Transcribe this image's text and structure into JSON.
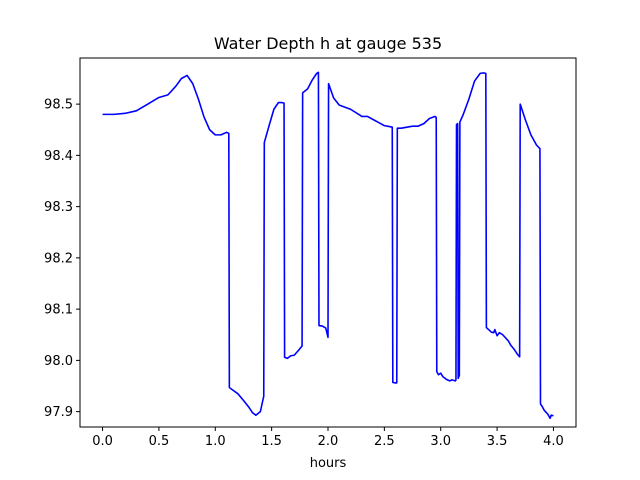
{
  "chart_data": {
    "type": "line",
    "title": "Water Depth h at gauge 535",
    "xlabel": "hours",
    "ylabel": "",
    "xlim": [
      -0.2,
      4.2
    ],
    "ylim": [
      97.87,
      98.59
    ],
    "xticks": [
      0.0,
      0.5,
      1.0,
      1.5,
      2.0,
      2.5,
      3.0,
      3.5,
      4.0
    ],
    "xtick_labels": [
      "0.0",
      "0.5",
      "1.0",
      "1.5",
      "2.0",
      "2.5",
      "3.0",
      "3.5",
      "4.0"
    ],
    "yticks": [
      97.9,
      98.0,
      98.1,
      98.2,
      98.3,
      98.4,
      98.5
    ],
    "ytick_labels": [
      "97.9",
      "98.0",
      "98.1",
      "98.2",
      "98.3",
      "98.4",
      "98.5"
    ],
    "grid": false,
    "series": [
      {
        "name": "h",
        "color": "#0000ff",
        "x": [
          0.0,
          0.1,
          0.2,
          0.3,
          0.4,
          0.5,
          0.58,
          0.65,
          0.7,
          0.75,
          0.8,
          0.85,
          0.9,
          0.95,
          1.0,
          1.05,
          1.1,
          1.12,
          1.125,
          1.15,
          1.2,
          1.25,
          1.3,
          1.33,
          1.36,
          1.4,
          1.43,
          1.435,
          1.48,
          1.52,
          1.56,
          1.59,
          1.61,
          1.615,
          1.64,
          1.67,
          1.7,
          1.74,
          1.77,
          1.775,
          1.82,
          1.86,
          1.9,
          1.915,
          1.92,
          1.95,
          1.98,
          2.0,
          2.005,
          2.05,
          2.1,
          2.2,
          2.28,
          2.3,
          2.35,
          2.4,
          2.45,
          2.5,
          2.55,
          2.57,
          2.575,
          2.6,
          2.61,
          2.615,
          2.65,
          2.7,
          2.75,
          2.8,
          2.85,
          2.9,
          2.95,
          2.96,
          2.965,
          2.98,
          3.0,
          3.02,
          3.05,
          3.08,
          3.1,
          3.13,
          3.135,
          3.14,
          3.15,
          3.155,
          3.16,
          3.165,
          3.17,
          3.2,
          3.25,
          3.3,
          3.35,
          3.38,
          3.4,
          3.405,
          3.45,
          3.47,
          3.48,
          3.5,
          3.52,
          3.55,
          3.6,
          3.62,
          3.65,
          3.68,
          3.7,
          3.705,
          3.75,
          3.8,
          3.85,
          3.88,
          3.885,
          3.9,
          3.92,
          3.95,
          3.97,
          3.98,
          4.0
        ],
        "y": [
          98.48,
          98.48,
          98.482,
          98.487,
          98.5,
          98.513,
          98.518,
          98.535,
          98.55,
          98.556,
          98.54,
          98.51,
          98.475,
          98.45,
          98.44,
          98.44,
          98.445,
          98.443,
          97.947,
          97.943,
          97.935,
          97.922,
          97.908,
          97.898,
          97.893,
          97.9,
          97.93,
          98.425,
          98.46,
          98.49,
          98.503,
          98.503,
          98.502,
          98.006,
          98.004,
          98.009,
          98.01,
          98.02,
          98.028,
          98.522,
          98.53,
          98.547,
          98.56,
          98.562,
          98.068,
          98.067,
          98.063,
          98.045,
          98.54,
          98.512,
          98.498,
          98.49,
          98.479,
          98.476,
          98.476,
          98.47,
          98.464,
          98.458,
          98.456,
          98.455,
          97.957,
          97.956,
          97.956,
          98.453,
          98.453,
          98.455,
          98.457,
          98.457,
          98.462,
          98.472,
          98.476,
          98.474,
          97.978,
          97.972,
          97.975,
          97.968,
          97.963,
          97.96,
          97.962,
          97.96,
          97.962,
          98.46,
          98.462,
          97.965,
          97.968,
          97.97,
          98.465,
          98.48,
          98.51,
          98.545,
          98.56,
          98.561,
          98.56,
          98.064,
          98.055,
          98.054,
          98.06,
          98.048,
          98.054,
          98.05,
          98.038,
          98.03,
          98.022,
          98.012,
          98.007,
          98.5,
          98.47,
          98.44,
          98.42,
          98.413,
          97.915,
          97.91,
          97.902,
          97.895,
          97.887,
          97.893,
          97.892
        ]
      }
    ]
  }
}
